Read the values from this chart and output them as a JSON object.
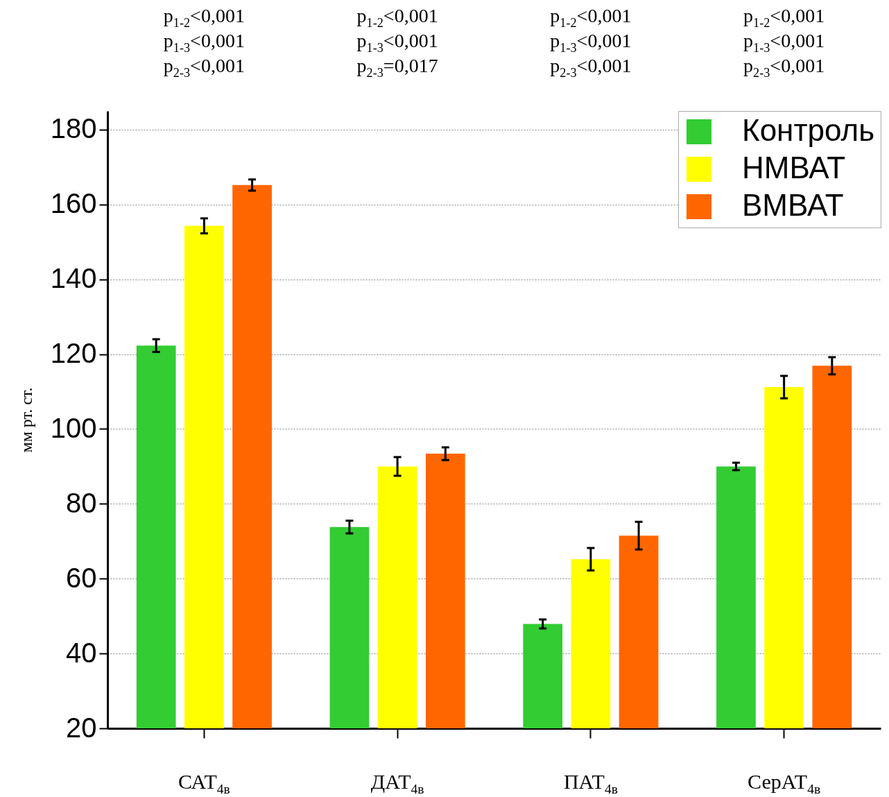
{
  "chart_data": {
    "type": "bar",
    "categories": [
      "САТ$_{4в}$",
      "ДАТ$_{4в}$",
      "ПАТ$_{4в}$",
      "СерАТ$_{4в}$"
    ],
    "ylabel": "мм рт. ст.",
    "ylim": [
      20,
      185
    ],
    "yticks": [
      20,
      40,
      60,
      80,
      100,
      120,
      140,
      160,
      180
    ],
    "grid": "y",
    "legend": "top right",
    "series": [
      {
        "name": "Контроль",
        "color": "#33cc33",
        "values": [
          122.3,
          73.8,
          47.9,
          90
        ],
        "errors": [
          1.7,
          1.7,
          1.2,
          1
        ]
      },
      {
        "name": "НМВАТ",
        "color": "#ffff00",
        "values": [
          154.3,
          90,
          65.2,
          111.2
        ],
        "errors": [
          2,
          2.5,
          3,
          3
        ]
      },
      {
        "name": "ВМВАТ",
        "color": "#ff6600",
        "values": [
          165.2,
          93.4,
          71.5,
          116.9
        ],
        "errors": [
          1.5,
          1.7,
          3.7,
          2.3
        ]
      }
    ],
    "annotations": [
      "p$_{1-2}$<0,001",
      "p$_{1-3}$<0,001",
      "p$_{2-3}$<0,001",
      "p$_{1-2}$<0,001",
      "p$_{1-3}$<0,001",
      "p$_{2-3}$=0,017",
      "p$_{1-2}$<0,001",
      "p$_{1-3}$<0,001",
      "p$_{2-3}$<0,001",
      "p$_{1-2}$<0,001",
      "p$_{1-3}$<0,001",
      "p$_{2-3}$<0,001"
    ]
  }
}
